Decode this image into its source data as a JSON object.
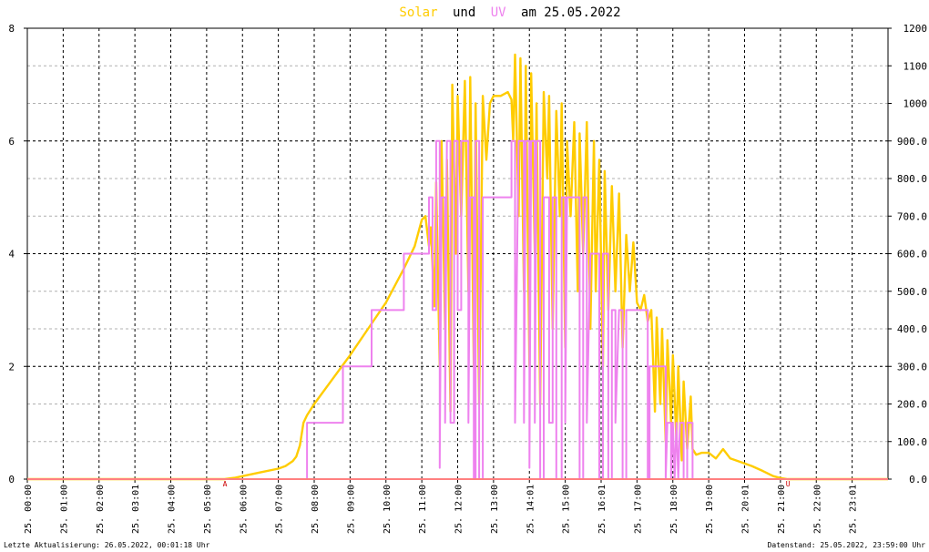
{
  "chart_data": {
    "type": "line",
    "title": {
      "part1": "Solar",
      "part2": "und",
      "part3": "UV",
      "part4": "am 25.05.2022"
    },
    "x_range_hours": [
      0,
      24
    ],
    "y_left": {
      "min": 0,
      "max": 8,
      "ticks": [
        "0",
        "2",
        "4",
        "6",
        "8"
      ],
      "tick_values": [
        0,
        2,
        4,
        6,
        8
      ]
    },
    "y_right": {
      "min": 0,
      "max": 1200,
      "ticks": [
        "0.0",
        "100.0",
        "200.0",
        "300.0",
        "400.0",
        "500.0",
        "600.0",
        "700.0",
        "800.0",
        "900.0",
        "1000",
        "1100",
        "1200"
      ],
      "tick_values": [
        0,
        100,
        200,
        300,
        400,
        500,
        600,
        700,
        800,
        900,
        1000,
        1100,
        1200
      ]
    },
    "x_ticks": [
      {
        "hour": 0,
        "day": "25.",
        "time": "00:00"
      },
      {
        "hour": 1,
        "day": "25.",
        "time": "01:00"
      },
      {
        "hour": 2,
        "day": "25.",
        "time": "02:00"
      },
      {
        "hour": 3,
        "day": "25.",
        "time": "03:01"
      },
      {
        "hour": 4,
        "day": "25.",
        "time": "04:00"
      },
      {
        "hour": 5,
        "day": "25.",
        "time": "05:00"
      },
      {
        "hour": 6,
        "day": "25.",
        "time": "06:00"
      },
      {
        "hour": 7,
        "day": "25.",
        "time": "07:00"
      },
      {
        "hour": 8,
        "day": "25.",
        "time": "08:00"
      },
      {
        "hour": 9,
        "day": "25.",
        "time": "09:00"
      },
      {
        "hour": 10,
        "day": "25.",
        "time": "10:00"
      },
      {
        "hour": 11,
        "day": "25.",
        "time": "11:00"
      },
      {
        "hour": 12,
        "day": "25.",
        "time": "12:00"
      },
      {
        "hour": 13,
        "day": "25.",
        "time": "13:00"
      },
      {
        "hour": 14,
        "day": "25.",
        "time": "14:01"
      },
      {
        "hour": 15,
        "day": "25.",
        "time": "15:00"
      },
      {
        "hour": 16,
        "day": "25.",
        "time": "16:01"
      },
      {
        "hour": 17,
        "day": "25.",
        "time": "17:00"
      },
      {
        "hour": 18,
        "day": "25.",
        "time": "18:00"
      },
      {
        "hour": 19,
        "day": "25.",
        "time": "19:00"
      },
      {
        "hour": 20,
        "day": "25.",
        "time": "20:01"
      },
      {
        "hour": 21,
        "day": "25.",
        "time": "21:00"
      },
      {
        "hour": 22,
        "day": "25.",
        "time": "22:00"
      },
      {
        "hour": 23,
        "day": "25.",
        "time": "23:01"
      }
    ],
    "grid": true,
    "series": [
      {
        "axis": "right",
        "color": "#ffcc00",
        "points": [
          [
            0,
            0
          ],
          [
            5.5,
            0
          ],
          [
            5.8,
            4
          ],
          [
            6.0,
            8
          ],
          [
            6.5,
            18
          ],
          [
            7.0,
            28
          ],
          [
            7.2,
            35
          ],
          [
            7.4,
            48
          ],
          [
            7.5,
            60
          ],
          [
            7.6,
            90
          ],
          [
            7.7,
            150
          ],
          [
            7.8,
            170
          ],
          [
            8.0,
            200
          ],
          [
            8.5,
            265
          ],
          [
            9.0,
            330
          ],
          [
            9.5,
            400
          ],
          [
            10.0,
            470
          ],
          [
            10.5,
            560
          ],
          [
            10.8,
            620
          ],
          [
            11.0,
            690
          ],
          [
            11.1,
            700
          ],
          [
            11.2,
            620
          ],
          [
            11.25,
            670
          ],
          [
            11.35,
            460
          ],
          [
            11.4,
            790
          ],
          [
            11.5,
            300
          ],
          [
            11.55,
            900
          ],
          [
            11.65,
            400
          ],
          [
            11.7,
            850
          ],
          [
            11.8,
            180
          ],
          [
            11.85,
            1050
          ],
          [
            11.95,
            600
          ],
          [
            12.0,
            1020
          ],
          [
            12.1,
            700
          ],
          [
            12.2,
            1060
          ],
          [
            12.3,
            500
          ],
          [
            12.35,
            1070
          ],
          [
            12.45,
            300
          ],
          [
            12.5,
            1000
          ],
          [
            12.6,
            200
          ],
          [
            12.7,
            1020
          ],
          [
            12.8,
            850
          ],
          [
            12.9,
            1000
          ],
          [
            13.0,
            1020
          ],
          [
            13.2,
            1020
          ],
          [
            13.4,
            1030
          ],
          [
            13.5,
            1010
          ],
          [
            13.55,
            900
          ],
          [
            13.6,
            1130
          ],
          [
            13.7,
            700
          ],
          [
            13.75,
            1120
          ],
          [
            13.85,
            500
          ],
          [
            13.9,
            1100
          ],
          [
            14.0,
            300
          ],
          [
            14.05,
            1080
          ],
          [
            14.15,
            600
          ],
          [
            14.2,
            1000
          ],
          [
            14.3,
            200
          ],
          [
            14.4,
            1030
          ],
          [
            14.5,
            800
          ],
          [
            14.55,
            1020
          ],
          [
            14.65,
            400
          ],
          [
            14.75,
            980
          ],
          [
            14.85,
            700
          ],
          [
            14.9,
            1000
          ],
          [
            15.0,
            350
          ],
          [
            15.05,
            900
          ],
          [
            15.15,
            700
          ],
          [
            15.25,
            950
          ],
          [
            15.35,
            500
          ],
          [
            15.4,
            920
          ],
          [
            15.5,
            600
          ],
          [
            15.6,
            950
          ],
          [
            15.7,
            400
          ],
          [
            15.8,
            900
          ],
          [
            15.85,
            500
          ],
          [
            15.95,
            850
          ],
          [
            16.05,
            300
          ],
          [
            16.1,
            820
          ],
          [
            16.2,
            450
          ],
          [
            16.3,
            780
          ],
          [
            16.4,
            500
          ],
          [
            16.5,
            760
          ],
          [
            16.6,
            350
          ],
          [
            16.7,
            650
          ],
          [
            16.8,
            500
          ],
          [
            16.9,
            630
          ],
          [
            17.0,
            470
          ],
          [
            17.1,
            450
          ],
          [
            17.2,
            490
          ],
          [
            17.3,
            420
          ],
          [
            17.4,
            450
          ],
          [
            17.5,
            180
          ],
          [
            17.55,
            430
          ],
          [
            17.65,
            200
          ],
          [
            17.7,
            400
          ],
          [
            17.8,
            100
          ],
          [
            17.85,
            370
          ],
          [
            17.95,
            150
          ],
          [
            18.0,
            330
          ],
          [
            18.1,
            100
          ],
          [
            18.15,
            300
          ],
          [
            18.25,
            50
          ],
          [
            18.3,
            260
          ],
          [
            18.4,
            80
          ],
          [
            18.5,
            220
          ],
          [
            18.55,
            80
          ],
          [
            18.65,
            65
          ],
          [
            18.8,
            70
          ],
          [
            19.0,
            70
          ],
          [
            19.2,
            55
          ],
          [
            19.4,
            80
          ],
          [
            19.6,
            55
          ],
          [
            19.9,
            45
          ],
          [
            20.2,
            35
          ],
          [
            20.5,
            22
          ],
          [
            20.8,
            8
          ],
          [
            21.0,
            3
          ],
          [
            21.2,
            0
          ],
          [
            24,
            0
          ]
        ]
      },
      {
        "axis": "left",
        "color": "#ee82ee",
        "points": [
          [
            0,
            0
          ],
          [
            7.8,
            0
          ],
          [
            7.8,
            1
          ],
          [
            8.8,
            1
          ],
          [
            8.8,
            2
          ],
          [
            9.6,
            2
          ],
          [
            9.6,
            3
          ],
          [
            10.5,
            3
          ],
          [
            10.5,
            4
          ],
          [
            11.2,
            4
          ],
          [
            11.2,
            5
          ],
          [
            11.3,
            5
          ],
          [
            11.3,
            3
          ],
          [
            11.4,
            3
          ],
          [
            11.4,
            6
          ],
          [
            11.5,
            6
          ],
          [
            11.5,
            0.2
          ],
          [
            11.55,
            5
          ],
          [
            11.65,
            5
          ],
          [
            11.65,
            1
          ],
          [
            11.7,
            6
          ],
          [
            11.8,
            6
          ],
          [
            11.8,
            1
          ],
          [
            11.9,
            1
          ],
          [
            11.9,
            6
          ],
          [
            12.0,
            6
          ],
          [
            12.0,
            3
          ],
          [
            12.1,
            3
          ],
          [
            12.1,
            6
          ],
          [
            12.3,
            6
          ],
          [
            12.3,
            1
          ],
          [
            12.35,
            5
          ],
          [
            12.45,
            5
          ],
          [
            12.45,
            0
          ],
          [
            12.5,
            0
          ],
          [
            12.5,
            6
          ],
          [
            12.6,
            6
          ],
          [
            12.6,
            0
          ],
          [
            12.7,
            0
          ],
          [
            12.7,
            5
          ],
          [
            13.5,
            5
          ],
          [
            13.5,
            6
          ],
          [
            13.6,
            6
          ],
          [
            13.6,
            1
          ],
          [
            13.7,
            6
          ],
          [
            13.85,
            6
          ],
          [
            13.85,
            1
          ],
          [
            13.9,
            6
          ],
          [
            14.0,
            6
          ],
          [
            14.0,
            0.2
          ],
          [
            14.05,
            6
          ],
          [
            14.15,
            6
          ],
          [
            14.15,
            1
          ],
          [
            14.2,
            6
          ],
          [
            14.3,
            6
          ],
          [
            14.3,
            0
          ],
          [
            14.4,
            0
          ],
          [
            14.4,
            5
          ],
          [
            14.55,
            5
          ],
          [
            14.55,
            1
          ],
          [
            14.65,
            1
          ],
          [
            14.65,
            5
          ],
          [
            14.75,
            5
          ],
          [
            14.75,
            0
          ],
          [
            14.9,
            0
          ],
          [
            14.9,
            5
          ],
          [
            15.0,
            5
          ],
          [
            15.0,
            1
          ],
          [
            15.05,
            5
          ],
          [
            15.4,
            5
          ],
          [
            15.4,
            0
          ],
          [
            15.5,
            0
          ],
          [
            15.5,
            5
          ],
          [
            15.6,
            5
          ],
          [
            15.6,
            1
          ],
          [
            15.7,
            4
          ],
          [
            15.95,
            4
          ],
          [
            15.95,
            0
          ],
          [
            16.05,
            0
          ],
          [
            16.05,
            4
          ],
          [
            16.2,
            4
          ],
          [
            16.2,
            0
          ],
          [
            16.3,
            0
          ],
          [
            16.3,
            3
          ],
          [
            16.4,
            3
          ],
          [
            16.4,
            1
          ],
          [
            16.5,
            3
          ],
          [
            16.6,
            3
          ],
          [
            16.6,
            0
          ],
          [
            16.7,
            0
          ],
          [
            16.7,
            3
          ],
          [
            17.3,
            3
          ],
          [
            17.3,
            0
          ],
          [
            17.35,
            0
          ],
          [
            17.35,
            2
          ],
          [
            17.8,
            2
          ],
          [
            17.8,
            0
          ],
          [
            17.85,
            1
          ],
          [
            17.95,
            1
          ],
          [
            17.95,
            0
          ],
          [
            18.0,
            1
          ],
          [
            18.05,
            0
          ],
          [
            18.1,
            1
          ],
          [
            18.15,
            0
          ],
          [
            18.2,
            1
          ],
          [
            18.3,
            1
          ],
          [
            18.3,
            0
          ],
          [
            18.4,
            0
          ],
          [
            18.4,
            1
          ],
          [
            18.55,
            1
          ],
          [
            18.55,
            0
          ],
          [
            24,
            0
          ]
        ]
      }
    ],
    "markers": [
      {
        "hour": 5.5,
        "label": "A"
      },
      {
        "hour": 21.2,
        "label": "U"
      }
    ]
  },
  "footer": {
    "left": "Letzte Aktualisierung: 26.05.2022, 00:01:18 Uhr",
    "right": "Datenstand: 25.05.2022, 23:59:00 Uhr"
  },
  "colors": {
    "solar": "#ffcc00",
    "uv": "#ee82ee",
    "baseline": "#ff8080",
    "grid_major": "#000000",
    "grid_minor": "#b0b0b0",
    "title_text": "#000000"
  }
}
